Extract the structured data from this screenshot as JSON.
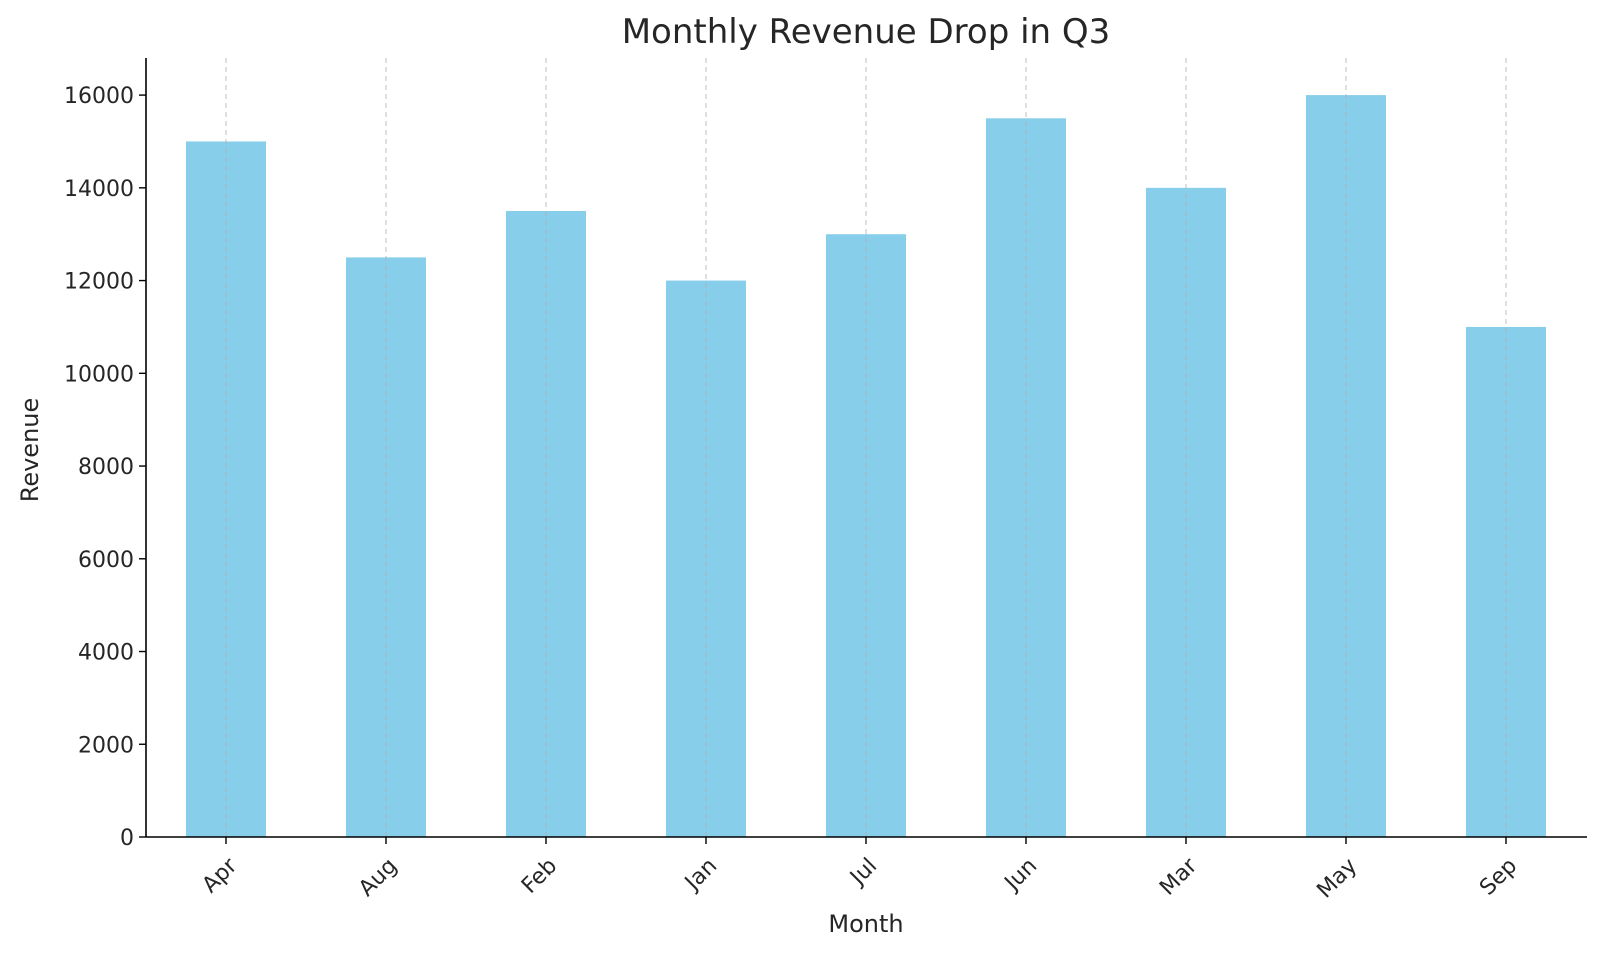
{
  "chart_data": {
    "type": "bar",
    "title": "Monthly Revenue Drop in Q3",
    "xlabel": "Month",
    "ylabel": "Revenue",
    "categories": [
      "Apr",
      "Aug",
      "Feb",
      "Jan",
      "Jul",
      "Jun",
      "Mar",
      "May",
      "Sep"
    ],
    "values": [
      15000,
      12500,
      13500,
      12000,
      13000,
      15500,
      14000,
      16000,
      11000
    ],
    "ylim": [
      0,
      16800
    ],
    "yticks": [
      0,
      2000,
      4000,
      6000,
      8000,
      10000,
      12000,
      14000,
      16000
    ],
    "grid": "vertical-dashed",
    "bar_color": "#87CEEB",
    "x_tick_rotation_deg": 45,
    "legend": "none"
  }
}
